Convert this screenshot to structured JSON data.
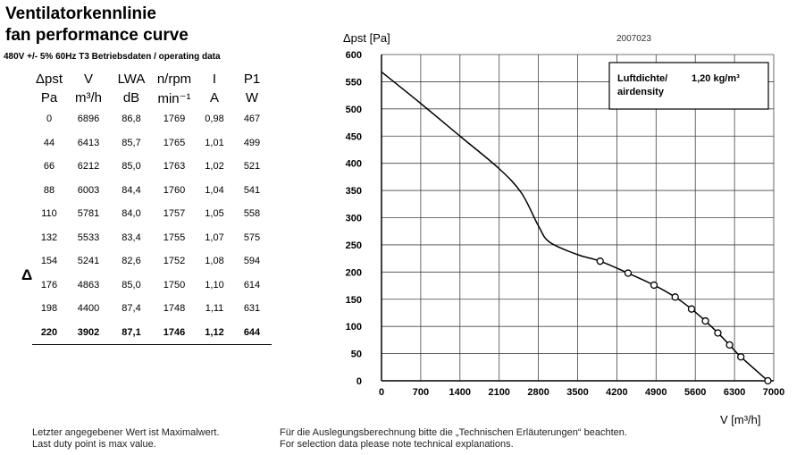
{
  "title_de": "Ventilatorkennlinie",
  "title_en": "fan performance curve",
  "conditions": "480V +/- 5% 60Hz T3 Betriebsdaten / operating data",
  "table": {
    "headers": [
      "Δpst",
      "V",
      "LWA",
      "n/rpm",
      "I",
      "P1"
    ],
    "units": [
      "Pa",
      "m³/h",
      "dB",
      "min⁻¹",
      "A",
      "W"
    ],
    "rows": [
      [
        "0",
        "6896",
        "86,8",
        "1769",
        "0,98",
        "467"
      ],
      [
        "44",
        "6413",
        "85,7",
        "1765",
        "1,01",
        "499"
      ],
      [
        "66",
        "6212",
        "85,0",
        "1763",
        "1,02",
        "521"
      ],
      [
        "88",
        "6003",
        "84,4",
        "1760",
        "1,04",
        "541"
      ],
      [
        "110",
        "5781",
        "84,0",
        "1757",
        "1,05",
        "558"
      ],
      [
        "132",
        "5533",
        "83,4",
        "1755",
        "1,07",
        "575"
      ],
      [
        "154",
        "5241",
        "82,6",
        "1752",
        "1,08",
        "594"
      ],
      [
        "176",
        "4863",
        "85,0",
        "1750",
        "1,10",
        "614"
      ],
      [
        "198",
        "4400",
        "87,4",
        "1748",
        "1,11",
        "631"
      ],
      [
        "220",
        "3902",
        "87,1",
        "1746",
        "1,12",
        "644"
      ]
    ],
    "marker": "Δ"
  },
  "footer": {
    "line1_de": "Letzter angegebener Wert ist Maximalwert.",
    "line1_en": "Last duty point is max value.",
    "line2_de": "Für die Auslegungsberechnung bitte die „Technischen Erläuterungen“ beachten.",
    "line2_en": "For selection data please note technical explanations."
  },
  "chart_data": {
    "type": "line",
    "ylabel": "Δpst [Pa]",
    "xlabel": "V [m³/h]",
    "code": "2007023",
    "legend": {
      "line1": "Luftdichte/",
      "line2": "airdensity",
      "value": "1,20 kg/m³"
    },
    "xlim": [
      0,
      7000
    ],
    "ylim": [
      0,
      600
    ],
    "xticks": [
      0,
      700,
      1400,
      2100,
      2800,
      3500,
      4200,
      4900,
      5600,
      6300,
      7000
    ],
    "yticks": [
      0,
      50,
      100,
      150,
      200,
      250,
      300,
      350,
      400,
      450,
      500,
      550,
      600
    ],
    "curve": {
      "x": [
        0,
        700,
        1400,
        2100,
        2500,
        2800,
        3000,
        3500,
        3902,
        4400,
        4863,
        5241,
        5533,
        5781,
        6003,
        6212,
        6413,
        6896
      ],
      "y": [
        568,
        510,
        450,
        390,
        345,
        285,
        255,
        232,
        220,
        198,
        176,
        154,
        132,
        110,
        88,
        66,
        44,
        0
      ]
    },
    "points": {
      "x": [
        3902,
        4400,
        4863,
        5241,
        5533,
        5781,
        6003,
        6212,
        6413,
        6896
      ],
      "y": [
        220,
        198,
        176,
        154,
        132,
        110,
        88,
        66,
        44,
        0
      ]
    }
  }
}
